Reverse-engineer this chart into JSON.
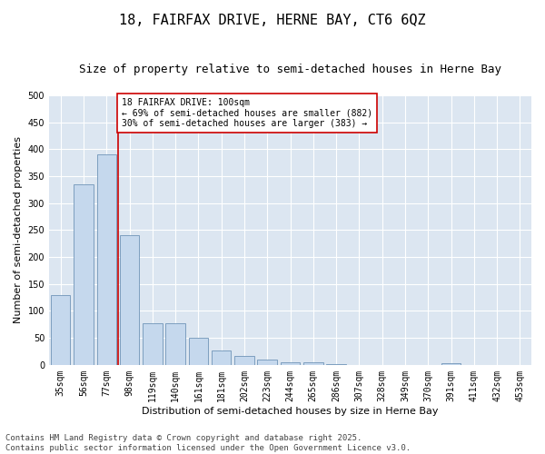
{
  "title": "18, FAIRFAX DRIVE, HERNE BAY, CT6 6QZ",
  "subtitle": "Size of property relative to semi-detached houses in Herne Bay",
  "xlabel": "Distribution of semi-detached houses by size in Herne Bay",
  "ylabel": "Number of semi-detached properties",
  "categories": [
    "35sqm",
    "56sqm",
    "77sqm",
    "98sqm",
    "119sqm",
    "140sqm",
    "161sqm",
    "181sqm",
    "202sqm",
    "223sqm",
    "244sqm",
    "265sqm",
    "286sqm",
    "307sqm",
    "328sqm",
    "349sqm",
    "370sqm",
    "391sqm",
    "411sqm",
    "432sqm",
    "453sqm"
  ],
  "values": [
    130,
    335,
    390,
    240,
    78,
    78,
    50,
    26,
    17,
    10,
    5,
    5,
    2,
    0,
    0,
    0,
    0,
    3,
    0,
    0,
    0
  ],
  "bar_color": "#c5d8ed",
  "bar_edge_color": "#7094b8",
  "vline_color": "#cc0000",
  "vline_x": 2.5,
  "annotation_text": "18 FAIRFAX DRIVE: 100sqm\n← 69% of semi-detached houses are smaller (882)\n30% of semi-detached houses are larger (383) →",
  "annotation_box_facecolor": "#ffffff",
  "annotation_box_edgecolor": "#cc0000",
  "ylim": [
    0,
    500
  ],
  "yticks": [
    0,
    50,
    100,
    150,
    200,
    250,
    300,
    350,
    400,
    450,
    500
  ],
  "plot_bg": "#dce6f1",
  "fig_bg": "#ffffff",
  "grid_color": "#ffffff",
  "footer": "Contains HM Land Registry data © Crown copyright and database right 2025.\nContains public sector information licensed under the Open Government Licence v3.0.",
  "title_fontsize": 11,
  "subtitle_fontsize": 9,
  "xlabel_fontsize": 8,
  "ylabel_fontsize": 8,
  "tick_fontsize": 7,
  "annotation_fontsize": 7,
  "footer_fontsize": 6.5
}
